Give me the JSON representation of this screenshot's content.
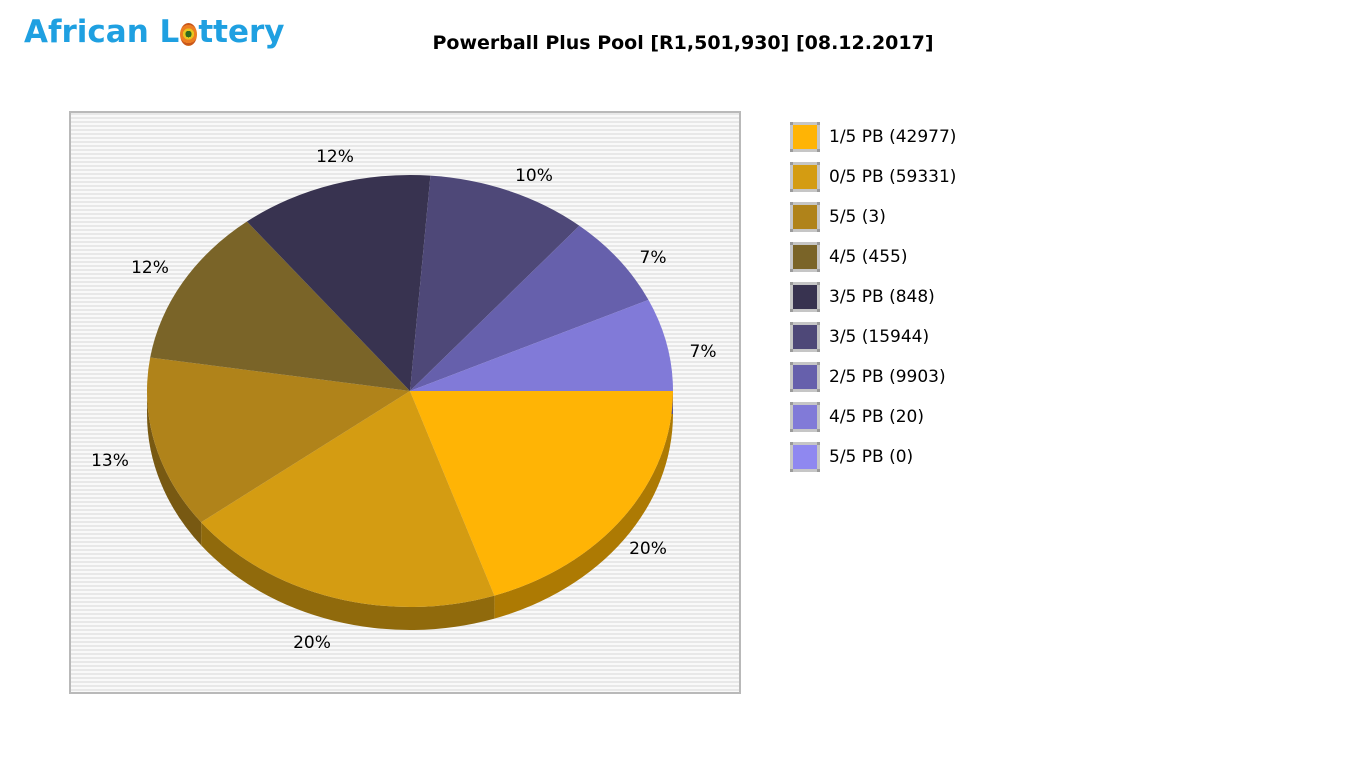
{
  "logo": {
    "prefix": "African L",
    "suffix": "ttery",
    "full_text": "African Lottery",
    "color": "#1FA0E1",
    "ball_icon": "lottery-ball"
  },
  "title": {
    "text": "Powerball Plus Pool [R1,501,930] [08.12.2017]"
  },
  "chart_data": {
    "type": "pie",
    "style": "3d",
    "title": "Powerball Plus Pool [R1,501,930] [08.12.2017]",
    "legend_position": "right",
    "grid": false,
    "start_angle_deg": 0,
    "direction": "clockwise",
    "slices": [
      {
        "label": "1/5 PB (42977)",
        "division": "1/5 PB",
        "winners": 42977,
        "percent": 20,
        "percent_label": "20%",
        "color": "#FFB405"
      },
      {
        "label": "0/5 PB (59331)",
        "division": "0/5 PB",
        "winners": 59331,
        "percent": 20,
        "percent_label": "20%",
        "color": "#D49C12"
      },
      {
        "label": "5/5 (3)",
        "division": "5/5",
        "winners": 3,
        "percent": 13,
        "percent_label": "13%",
        "color": "#B0831A"
      },
      {
        "label": "4/5 (455)",
        "division": "4/5",
        "winners": 455,
        "percent": 12,
        "percent_label": "12%",
        "color": "#7A6428"
      },
      {
        "label": "3/5 PB (848)",
        "division": "3/5 PB",
        "winners": 848,
        "percent": 12,
        "percent_label": "12%",
        "color": "#383350"
      },
      {
        "label": "3/5 (15944)",
        "division": "3/5",
        "winners": 15944,
        "percent": 10,
        "percent_label": "10%",
        "color": "#4E4878"
      },
      {
        "label": "2/5 PB (9903)",
        "division": "2/5 PB",
        "winners": 9903,
        "percent": 7,
        "percent_label": "7%",
        "color": "#6660AC"
      },
      {
        "label": "4/5 PB (20)",
        "division": "4/5 PB",
        "winners": 20,
        "percent": 7,
        "percent_label": "7%",
        "color": "#817AD8"
      },
      {
        "label": "5/5 PB (0)",
        "division": "5/5 PB",
        "winners": 0,
        "percent": 0,
        "percent_label": "",
        "color": "#8F88F0"
      }
    ]
  }
}
